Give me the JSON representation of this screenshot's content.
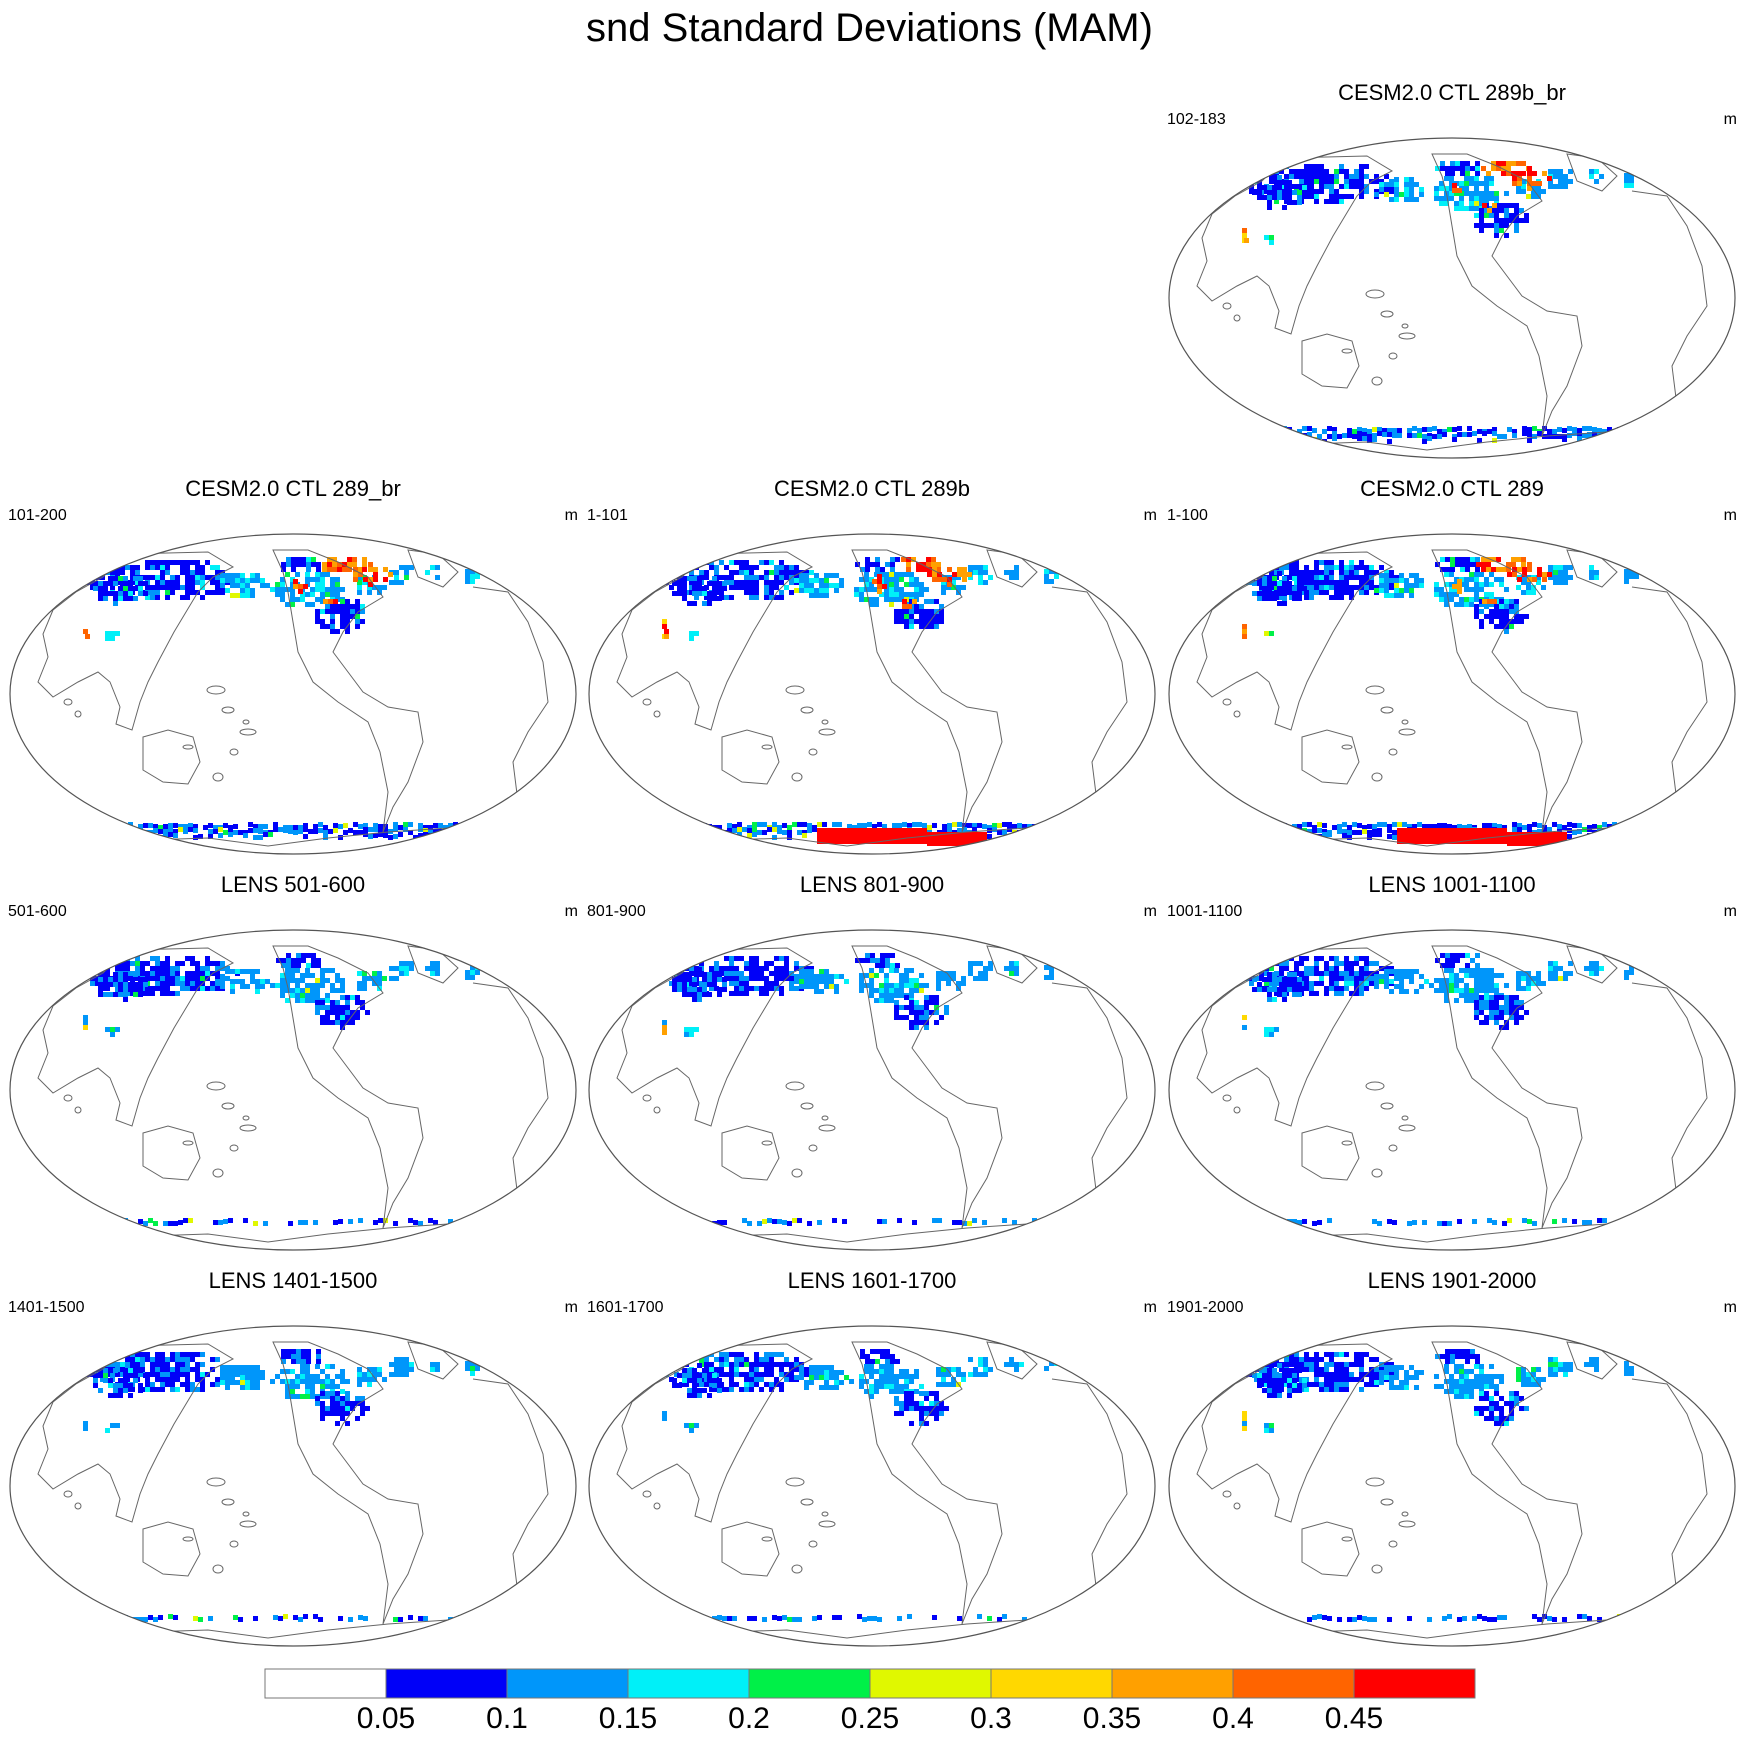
{
  "chart_data": {
    "type": "heatmap",
    "title": "snd Standard Deviations (MAM)",
    "colorbar": {
      "levels": [
        "0.05",
        "0.1",
        "0.15",
        "0.2",
        "0.25",
        "0.3",
        "0.35",
        "0.4",
        "0.45"
      ],
      "colors": [
        "#ffffff",
        "#0000f8",
        "#0096fa",
        "#00f0f8",
        "#00f048",
        "#e0f800",
        "#ffd800",
        "#ffa000",
        "#ff6400",
        "#ff0000"
      ]
    },
    "panels": [
      {
        "title": "CESM2.0 CTL 289b_br",
        "years": "102-183",
        "units": "m",
        "antarctic_high": false
      },
      {
        "title": "CESM2.0 CTL 289_br",
        "years": "101-200",
        "units": "m",
        "antarctic_high": false
      },
      {
        "title": "CESM2.0 CTL 289b",
        "years": "1-101",
        "units": "m",
        "antarctic_high": true
      },
      {
        "title": "CESM2.0 CTL 289",
        "years": "1-100",
        "units": "m",
        "antarctic_high": true
      },
      {
        "title": "LENS 501-600",
        "years": "501-600",
        "units": "m",
        "antarctic_high": false
      },
      {
        "title": "LENS 801-900",
        "years": "801-900",
        "units": "m",
        "antarctic_high": false
      },
      {
        "title": "LENS 1001-1100",
        "years": "1001-1100",
        "units": "m",
        "antarctic_high": false
      },
      {
        "title": "LENS 1401-1500",
        "years": "1401-1500",
        "units": "m",
        "antarctic_high": false
      },
      {
        "title": "LENS 1601-1700",
        "years": "1601-1700",
        "units": "m",
        "antarctic_high": false
      },
      {
        "title": "LENS 1901-2000",
        "years": "1901-2000",
        "units": "m",
        "antarctic_high": false
      }
    ]
  }
}
